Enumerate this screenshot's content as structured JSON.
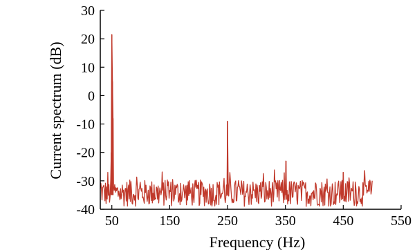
{
  "chart_data": {
    "type": "line",
    "title": "",
    "xlabel": "Frequency (Hz)",
    "ylabel": "Current spectrum (dB)",
    "xlim": [
      30,
      550
    ],
    "ylim": [
      -40,
      30
    ],
    "x_ticks": [
      50,
      150,
      250,
      350,
      450,
      550
    ],
    "y_ticks": [
      30,
      20,
      10,
      0,
      -10,
      -20,
      -30,
      -40
    ],
    "x_tick_labels": [
      "50",
      "150",
      "250",
      "350",
      "450",
      "550"
    ],
    "y_tick_labels": [
      "30",
      "20",
      "10",
      "0",
      "-10",
      "-20",
      "-30",
      "-40"
    ],
    "grid": false,
    "legend": "none",
    "series": [
      {
        "color": "#c0392b",
        "noise_floor_db": -35,
        "noise_range_db": [
          -39,
          -26
        ],
        "x_range_hz": [
          30,
          500
        ],
        "peaks": [
          {
            "x": 49,
            "y": -20
          },
          {
            "x": 50,
            "y": 21.5
          },
          {
            "x": 51,
            "y": 5
          },
          {
            "x": 52,
            "y": -8
          },
          {
            "x": 250,
            "y": -9
          },
          {
            "x": 351,
            "y": -23
          },
          {
            "x": 450,
            "y": -27
          }
        ]
      }
    ]
  }
}
